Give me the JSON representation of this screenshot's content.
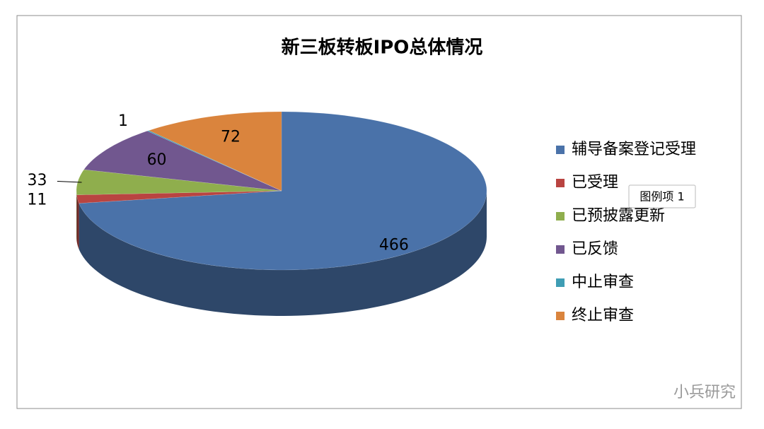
{
  "chart_data": {
    "type": "pie",
    "title": "新三板转板IPO总体情况",
    "categories": [
      "辅导备案登记受理",
      "已受理",
      "已预披露更新",
      "已反馈",
      "中止审查",
      "终止审查"
    ],
    "values": [
      466,
      11,
      33,
      60,
      1,
      72
    ],
    "colors": [
      "#4a72a9",
      "#b94441",
      "#8fae4d",
      "#71578f",
      "#3f9db4",
      "#da843d"
    ],
    "legend": "right"
  },
  "tooltip": "图例项 1",
  "watermark": "小兵研究"
}
